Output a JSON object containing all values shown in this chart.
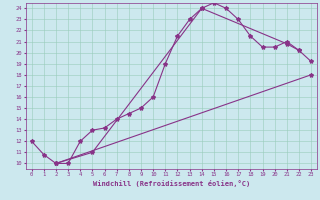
{
  "xlabel": "Windchill (Refroidissement éolien,°C)",
  "bg_color": "#cce8ee",
  "grid_color": "#99ccbb",
  "line_color": "#883388",
  "xlim": [
    -0.5,
    23.5
  ],
  "ylim": [
    9.5,
    24.5
  ],
  "xticks": [
    0,
    1,
    2,
    3,
    4,
    5,
    6,
    7,
    8,
    9,
    10,
    11,
    12,
    13,
    14,
    15,
    16,
    17,
    18,
    19,
    20,
    21,
    22,
    23
  ],
  "yticks": [
    10,
    11,
    12,
    13,
    14,
    15,
    16,
    17,
    18,
    19,
    20,
    21,
    22,
    23,
    24
  ],
  "curve1_x": [
    0,
    1,
    2,
    3,
    4,
    5,
    6,
    7,
    8,
    9,
    10,
    11,
    12,
    13,
    14,
    15,
    16,
    17,
    18,
    19,
    20,
    21,
    22,
    23
  ],
  "curve1_y": [
    12.0,
    10.8,
    10.0,
    10.0,
    12.0,
    13.0,
    13.2,
    14.0,
    14.5,
    15.0,
    16.0,
    19.0,
    21.5,
    23.0,
    24.0,
    24.5,
    24.0,
    23.0,
    21.5,
    20.5,
    20.5,
    21.0,
    20.2,
    19.2
  ],
  "curve2_x": [
    2,
    23
  ],
  "curve2_y": [
    10.0,
    18.0
  ],
  "curve3_x": [
    2,
    5,
    14,
    21,
    22
  ],
  "curve3_y": [
    10.0,
    11.0,
    24.0,
    20.8,
    20.2
  ],
  "marker": "*",
  "markersize": 3,
  "linewidth": 0.8,
  "tick_fontsize": 4,
  "xlabel_fontsize": 5
}
